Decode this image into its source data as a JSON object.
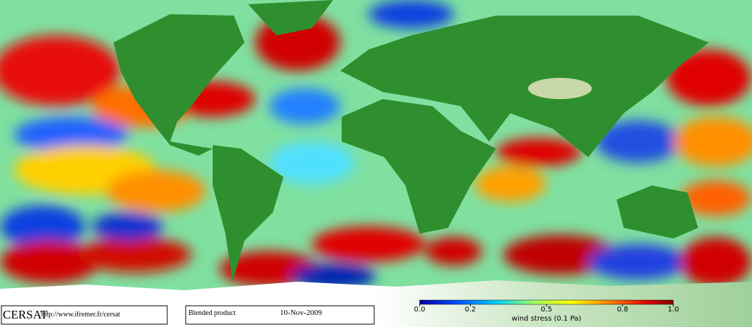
{
  "branding": {
    "logo": "CERSAT",
    "url": "http://www.ifremer.fr/cersat"
  },
  "product": {
    "name": "Blended product",
    "date": "10-Nov-2009"
  },
  "colorbar": {
    "label": "wind stress (0.1 Pa)",
    "range": [
      0,
      1
    ],
    "ticks": [
      {
        "value": 0,
        "label": "0.0"
      },
      0.2,
      0.5,
      0.8,
      {
        "value": 1,
        "label": "1.0"
      }
    ]
  }
}
